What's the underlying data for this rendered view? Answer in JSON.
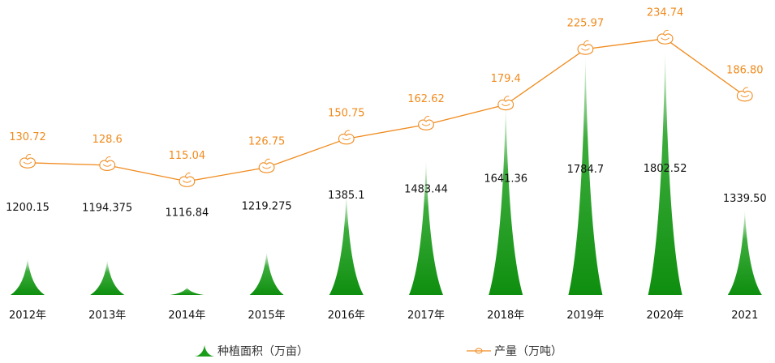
{
  "chart_data": {
    "type": "bar+line",
    "categories": [
      "2012年",
      "2013年",
      "2014年",
      "2015年",
      "2016年",
      "2017年",
      "2018年",
      "2019年",
      "2020年",
      "2021"
    ],
    "series": [
      {
        "name": "种植面积（万亩）",
        "kind": "spike-bar",
        "color": "#1a9e1a",
        "values": [
          1200.15,
          1194.375,
          1116.84,
          1219.275,
          1385.1,
          1483.44,
          1641.36,
          1784.7,
          1802.52,
          1339.5
        ],
        "labels": [
          "1200.15",
          "1194.375",
          "1116.84",
          "1219.275",
          "1385.1",
          "1483.44",
          "1641.36",
          "1784.7",
          "1802.52",
          "1339.50"
        ]
      },
      {
        "name": "产量（万吨）",
        "kind": "line",
        "color": "#f08a1c",
        "icon": "bean-icon",
        "values": [
          130.72,
          128.6,
          115.04,
          126.75,
          150.75,
          162.62,
          179.4,
          225.97,
          234.74,
          186.8
        ],
        "labels": [
          "130.72",
          "128.6",
          "115.04",
          "126.75",
          "150.75",
          "162.62",
          "179.4",
          "225.97",
          "234.74",
          "186.80"
        ]
      }
    ],
    "title": "",
    "xlabel": "",
    "ylabel": "",
    "grid": false,
    "legend": "bottom"
  }
}
